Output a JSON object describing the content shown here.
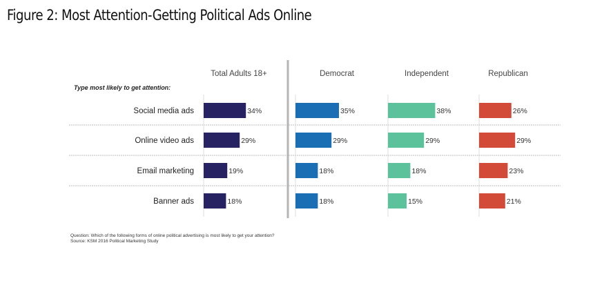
{
  "chart_data": {
    "type": "bar",
    "title": "Figure 2: Most Attention-Getting Political Ads Online",
    "row_header": "Type most likely to get attention:",
    "categories": [
      "Social media ads",
      "Online video ads",
      "Email marketing",
      "Banner ads"
    ],
    "series": [
      {
        "name": "Total Adults 18+",
        "color": "#272262",
        "values": [
          34,
          29,
          19,
          18
        ]
      },
      {
        "name": "Democrat",
        "color": "#1a6fb4",
        "values": [
          35,
          29,
          18,
          18
        ]
      },
      {
        "name": "Independent",
        "color": "#5cc29b",
        "values": [
          38,
          29,
          18,
          15
        ]
      },
      {
        "name": "Republican",
        "color": "#d14b38",
        "values": [
          26,
          29,
          23,
          21
        ]
      }
    ],
    "value_suffix": "%",
    "xlim": [
      0,
      100
    ]
  },
  "footnote": {
    "question": "Question: Which of the following forms of online political advertising is most likely to get your attention?",
    "source": "Source: KSM 2016 Political Marketing Study"
  }
}
